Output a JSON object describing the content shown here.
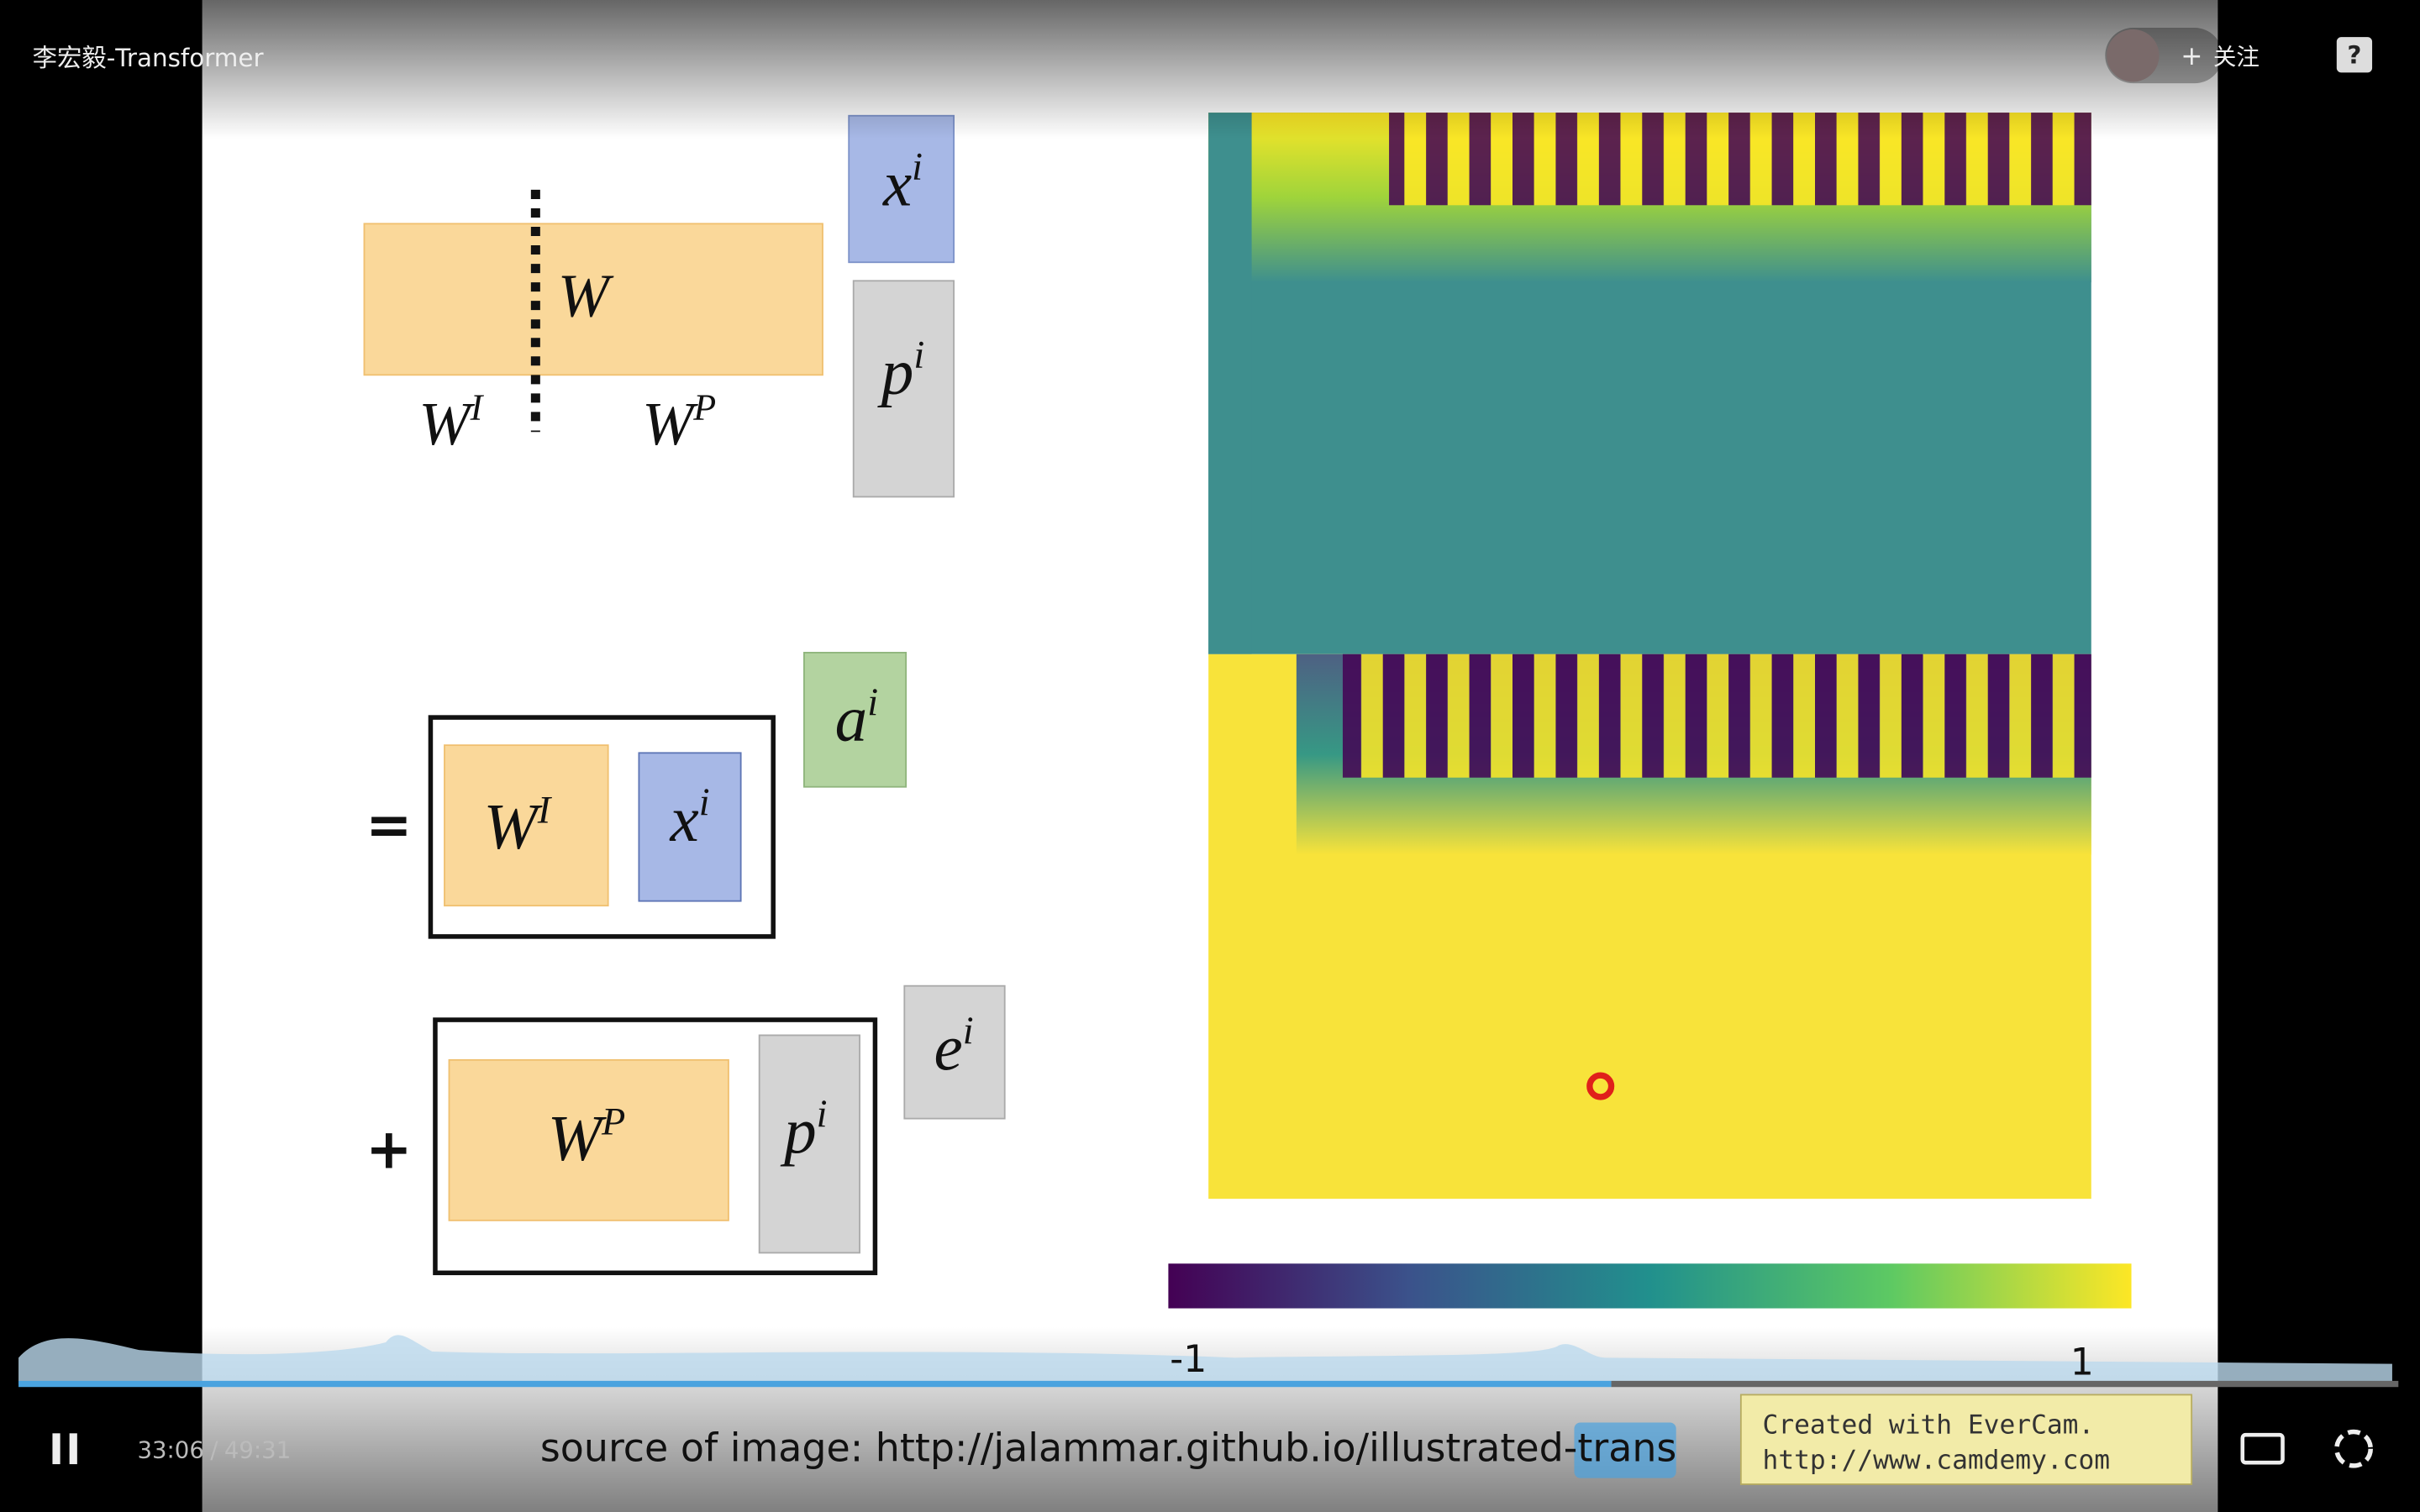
{
  "player": {
    "title": "李宏毅-Transformer",
    "follow": "关注",
    "current_time": "33:06",
    "separator": "/",
    "duration": "49:31"
  },
  "slide": {
    "labels": [
      {
        "base": "W"
      },
      {
        "base": "W",
        "sup": "I"
      },
      {
        "base": "W",
        "sup": "P"
      },
      {
        "base": "x",
        "sup": "i"
      },
      {
        "base": "p",
        "sup": "i"
      },
      {
        "base": "a",
        "sup": "i"
      },
      {
        "base": "W",
        "sup": "I"
      },
      {
        "base": "x",
        "sup": "i"
      },
      {
        "base": "e",
        "sup": "i"
      },
      {
        "base": "W",
        "sup": "P"
      },
      {
        "base": "p",
        "sup": "i"
      }
    ],
    "operators": [
      "=",
      "+"
    ],
    "colorbar": {
      "min": "-1",
      "max": "1"
    },
    "source": "source of image: http://jalammar.github.io/illustrated-trans",
    "watermark": [
      "Created with EverCam.",
      "http://www.camdemy.com"
    ]
  }
}
